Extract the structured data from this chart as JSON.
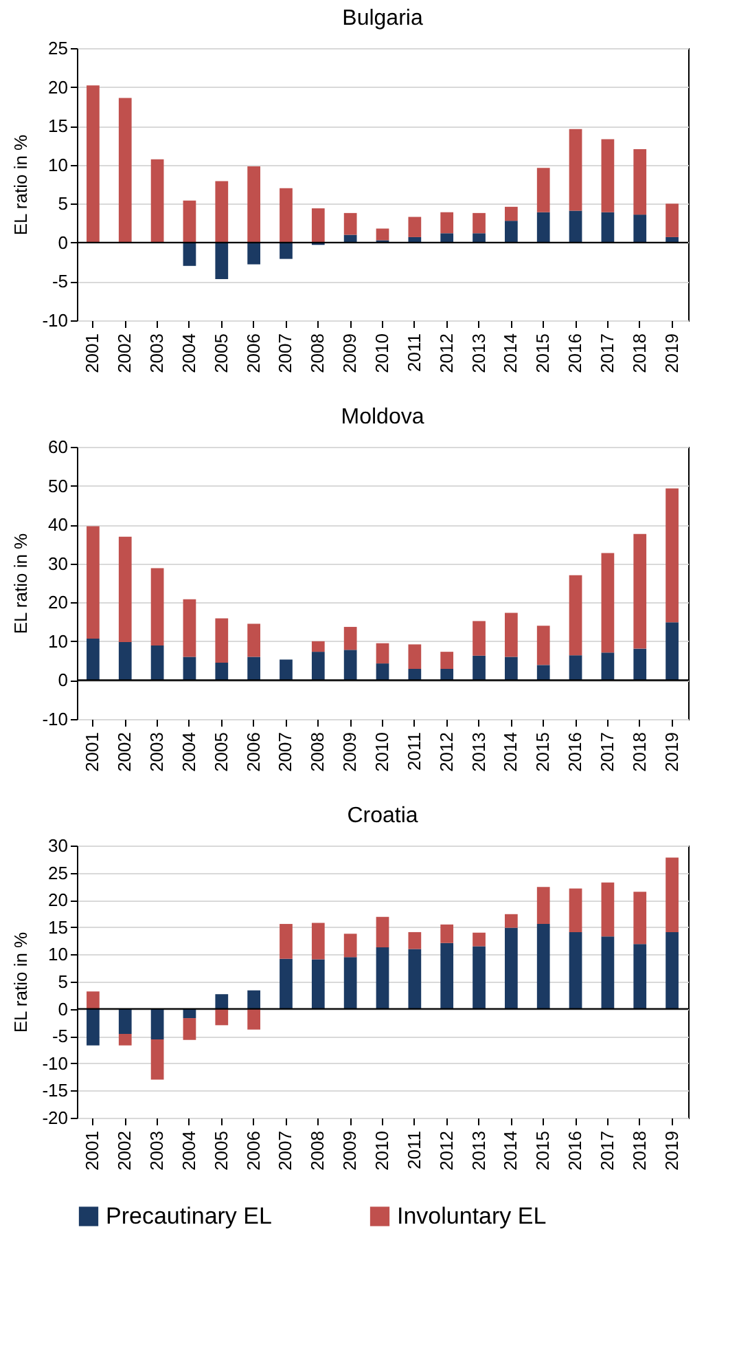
{
  "chart_data": [
    {
      "type": "bar",
      "stacked": true,
      "title": "Bulgaria",
      "ylabel": "EL ratio in %",
      "categories": [
        "2001",
        "2002",
        "2003",
        "2004",
        "2005",
        "2006",
        "2007",
        "2008",
        "2009",
        "2010",
        "2011",
        "2012",
        "2013",
        "2014",
        "2015",
        "2016",
        "2017",
        "2018",
        "2019"
      ],
      "ylim": [
        -10,
        25
      ],
      "yticks": [
        -10,
        -5,
        0,
        5,
        10,
        15,
        20,
        25
      ],
      "grid": "y",
      "legend": "bottom",
      "series": [
        {
          "name": "Precautinary EL",
          "color": "#1b3a63",
          "values": [
            0,
            0,
            0,
            -3.0,
            -4.7,
            -2.8,
            -2.1,
            -0.3,
            1.0,
            0.3,
            0.7,
            1.2,
            1.2,
            2.8,
            3.9,
            4.1,
            3.9,
            3.6,
            0.7
          ]
        },
        {
          "name": "Involuntary EL",
          "color": "#c0504d",
          "values": [
            20.2,
            18.6,
            10.7,
            5.4,
            7.9,
            9.8,
            7.0,
            4.4,
            2.8,
            1.5,
            2.6,
            2.7,
            2.6,
            1.8,
            5.7,
            10.5,
            9.4,
            8.4,
            4.3
          ]
        }
      ]
    },
    {
      "type": "bar",
      "stacked": true,
      "title": "Moldova",
      "ylabel": "EL ratio in %",
      "categories": [
        "2001",
        "2002",
        "2003",
        "2004",
        "2005",
        "2006",
        "2007",
        "2008",
        "2009",
        "2010",
        "2011",
        "2012",
        "2013",
        "2014",
        "2015",
        "2016",
        "2017",
        "2018",
        "2019"
      ],
      "ylim": [
        -10,
        60
      ],
      "yticks": [
        -10,
        0,
        10,
        20,
        30,
        40,
        50,
        60
      ],
      "grid": "y",
      "legend": "bottom",
      "series": [
        {
          "name": "Precautinary EL",
          "color": "#1b3a63",
          "values": [
            10.7,
            9.8,
            8.9,
            6.0,
            4.5,
            6.0,
            5.3,
            7.3,
            7.8,
            4.3,
            2.9,
            2.9,
            6.3,
            6.0,
            3.9,
            6.4,
            7.1,
            8.1,
            14.9
          ]
        },
        {
          "name": "Involuntary EL",
          "color": "#c0504d",
          "values": [
            28.9,
            27.1,
            19.9,
            14.8,
            11.4,
            8.5,
            0,
            2.7,
            5.9,
            5.2,
            6.3,
            4.4,
            8.9,
            11.3,
            10.1,
            20.6,
            25.6,
            29.5,
            34.4
          ]
        }
      ]
    },
    {
      "type": "bar",
      "stacked": true,
      "title": "Croatia",
      "ylabel": "EL ratio in %",
      "categories": [
        "2001",
        "2002",
        "2003",
        "2004",
        "2005",
        "2006",
        "2007",
        "2008",
        "2009",
        "2010",
        "2011",
        "2012",
        "2013",
        "2014",
        "2015",
        "2016",
        "2017",
        "2018",
        "2019"
      ],
      "ylim": [
        -20,
        30
      ],
      "yticks": [
        -20,
        -15,
        -10,
        -5,
        0,
        5,
        10,
        15,
        20,
        25,
        30
      ],
      "grid": "y",
      "legend": "bottom",
      "series": [
        {
          "name": "Precautinary EL",
          "color": "#1b3a63",
          "values": [
            -6.7,
            -4.6,
            -5.6,
            -1.7,
            2.7,
            3.4,
            9.2,
            9.1,
            9.5,
            11.3,
            11.0,
            12.1,
            11.5,
            14.9,
            15.6,
            14.1,
            13.3,
            11.9,
            14.1
          ]
        },
        {
          "name": "Involuntary EL",
          "color": "#c0504d",
          "values": [
            3.2,
            -2.1,
            -7.4,
            -4.0,
            -3.0,
            -3.8,
            6.4,
            6.7,
            4.3,
            5.6,
            3.1,
            3.4,
            2.5,
            2.5,
            6.8,
            8.0,
            9.9,
            9.6,
            13.7
          ]
        }
      ]
    }
  ]
}
